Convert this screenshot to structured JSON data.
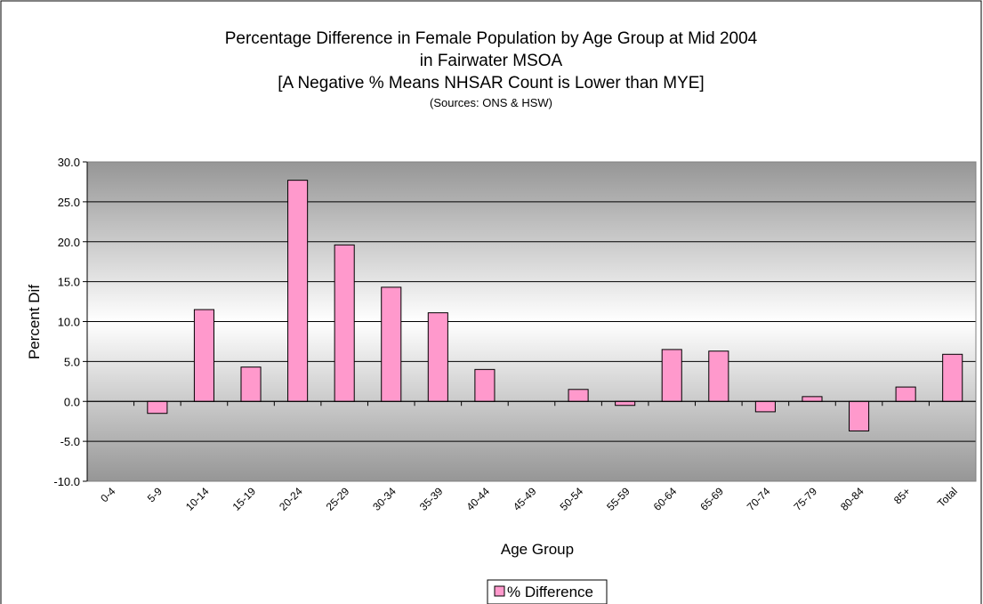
{
  "chart_data": {
    "type": "bar",
    "title": [
      "Percentage Difference in Female Population by Age Group at Mid 2004",
      "in Fairwater MSOA",
      "[A Negative % Means NHSAR Count is Lower than MYE]"
    ],
    "subtitle": "(Sources: ONS & HSW)",
    "x_label": "Age Group",
    "y_label": "Percent Dif",
    "categories": [
      "0-4",
      "5-9",
      "10-14",
      "15-19",
      "20-24",
      "25-29",
      "30-34",
      "35-39",
      "40-44",
      "45-49",
      "50-54",
      "55-59",
      "60-64",
      "65-69",
      "70-74",
      "75-79",
      "80-84",
      "85+",
      "Total"
    ],
    "series": [
      {
        "name": "% Difference",
        "color": "#ff99cc",
        "values": [
          0,
          -1.5,
          11.5,
          4.3,
          27.7,
          19.6,
          14.3,
          11.1,
          4.0,
          0,
          1.5,
          -0.5,
          6.5,
          6.3,
          -1.3,
          0.6,
          -3.7,
          1.8,
          5.9
        ]
      }
    ],
    "ylim": [
      -10,
      30
    ],
    "yticks": [
      {
        "value": -10,
        "label": "-10.0"
      },
      {
        "value": -5,
        "label": "-5.0"
      },
      {
        "value": 0,
        "label": "0.0"
      },
      {
        "value": 5,
        "label": "5.0"
      },
      {
        "value": 10,
        "label": "10.0"
      },
      {
        "value": 15,
        "label": "15.0"
      },
      {
        "value": 20,
        "label": "20.0"
      },
      {
        "value": 25,
        "label": "25.0"
      },
      {
        "value": 30,
        "label": "30.0"
      }
    ],
    "grid": true,
    "legend": "bottom"
  }
}
